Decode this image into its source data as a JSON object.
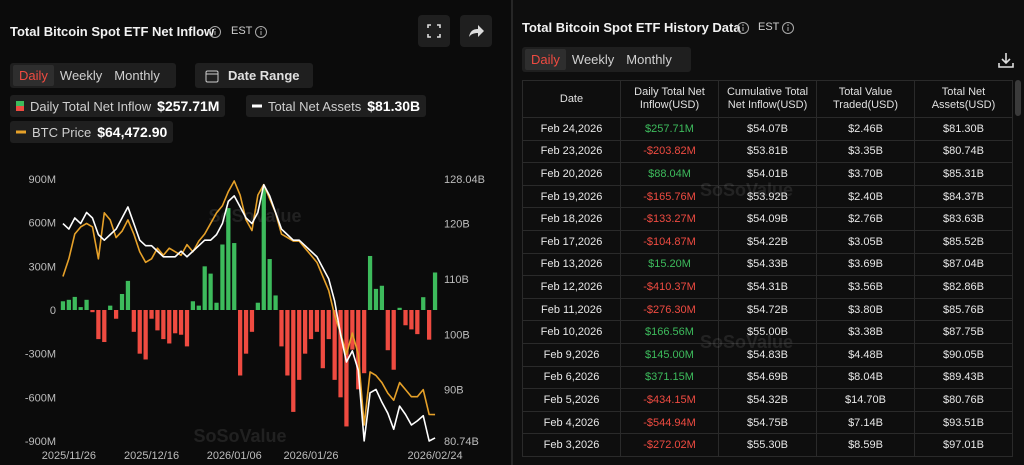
{
  "left_header": {
    "title": "Total Bitcoin Spot ETF Net Inflow",
    "zone": "EST",
    "tabs": [
      "Daily",
      "Weekly",
      "Monthly"
    ],
    "date_button": "Date Range"
  },
  "legend_values": [
    "$257.71M",
    "$81.30B",
    "$64,472.90"
  ],
  "watermark": "SoSoValue",
  "chart_data": {
    "type": "bar",
    "categories": [
      null,
      "2025/11/26",
      null,
      null,
      null,
      null,
      null,
      null,
      null,
      null,
      null,
      null,
      null,
      null,
      null,
      "2025/12/16",
      null,
      null,
      null,
      null,
      null,
      null,
      null,
      null,
      null,
      null,
      null,
      null,
      null,
      "2026/01/06",
      null,
      null,
      null,
      null,
      null,
      null,
      null,
      null,
      null,
      null,
      null,
      null,
      "2026/01/26",
      null,
      null,
      null,
      null,
      null,
      null,
      null,
      null,
      null,
      null,
      null,
      null,
      null,
      null,
      null,
      null,
      null,
      null,
      null,
      null,
      "2026/02/24"
    ],
    "series": [
      {
        "name": "Daily Total Net Inflow",
        "type": "bar",
        "color": "#3dbb5c",
        "negative_color": "#ef4b41",
        "values": [
          60,
          70,
          90,
          20,
          70,
          -15,
          -200,
          -220,
          30,
          -60,
          110,
          200,
          -150,
          -300,
          -340,
          -60,
          -140,
          -200,
          -230,
          -160,
          -170,
          -250,
          60,
          30,
          300,
          250,
          50,
          450,
          700,
          460,
          -450,
          -300,
          -150,
          50,
          840,
          350,
          100,
          -250,
          -450,
          -700,
          -480,
          -300,
          -200,
          -150,
          -400,
          -200,
          -480,
          -600,
          -800,
          -272.02,
          -544.94,
          -434.15,
          371.15,
          145.0,
          166.56,
          -276.3,
          -410.37,
          15.2,
          -104.87,
          -133.27,
          -165.76,
          88.04,
          -203.82,
          257.71
        ]
      },
      {
        "name": "Total Net Assets",
        "type": "line",
        "axis": "y2",
        "color": "#ffffff",
        "values": [
          120,
          119,
          121,
          120,
          122,
          121,
          118,
          117,
          118,
          119,
          121,
          123,
          120,
          117,
          116,
          116,
          115,
          114,
          114,
          114,
          115,
          114,
          115,
          116,
          117,
          117,
          118,
          120,
          124,
          125,
          123,
          121,
          120,
          122,
          127,
          125,
          122,
          119,
          118,
          117,
          117,
          116,
          115,
          114,
          112,
          110,
          106,
          100,
          95,
          97.01,
          93.51,
          80.76,
          89.43,
          90.05,
          87.75,
          85.76,
          82.86,
          87.04,
          85.52,
          83.63,
          84.37,
          85.31,
          80.74,
          81.3
        ]
      },
      {
        "name": "BTC Price",
        "type": "line",
        "color": "#e6a129",
        "values": [
          84000,
          86500,
          90000,
          91000,
          91500,
          91000,
          86500,
          93000,
          92000,
          89500,
          90400,
          92000,
          90000,
          87500,
          86000,
          86500,
          88000,
          87000,
          88000,
          87500,
          87000,
          88500,
          87500,
          89000,
          90000,
          91500,
          93000,
          94000,
          96000,
          97500,
          95500,
          92000,
          90500,
          95500,
          97000,
          95000,
          93000,
          90000,
          89500,
          89000,
          89000,
          88000,
          87000,
          86000,
          84000,
          82000,
          78500,
          76000,
          73000,
          76000,
          73000,
          63000,
          70500,
          70000,
          69000,
          67500,
          66500,
          69000,
          68000,
          67000,
          67000,
          68000,
          64500,
          64472.9
        ]
      }
    ],
    "ylim": [
      -900,
      900
    ],
    "yticks": [
      {
        "value": 900,
        "label": "900M"
      },
      {
        "value": 600,
        "label": "600M"
      },
      {
        "value": 300,
        "label": "300M"
      },
      0,
      {
        "value": -300,
        "label": "-300M"
      },
      {
        "value": -600,
        "label": "-600M"
      },
      {
        "value": -900,
        "label": "-900M"
      }
    ],
    "y2lim": [
      80.74,
      128.04
    ],
    "y2ticks": [
      {
        "value": 128.04,
        "label": "128.04B"
      },
      {
        "value": 120,
        "label": "120B"
      },
      {
        "value": 110,
        "label": "110B"
      },
      {
        "value": 100,
        "label": "100B"
      },
      {
        "value": 90,
        "label": "90B"
      },
      {
        "value": 80.74,
        "label": "80.74B"
      }
    ],
    "grid": false
  },
  "right_header": {
    "title": "Total Bitcoin Spot ETF History Data",
    "zone": "EST",
    "tabs": [
      "Daily",
      "Weekly",
      "Monthly"
    ]
  },
  "table": {
    "columns": [
      "Date",
      "Daily Total Net Inflow(USD)",
      "Cumulative Total Net Inflow(USD)",
      "Total Value Traded(USD)",
      "Total Net Assets(USD)"
    ],
    "rows": [
      [
        "Feb 24,2026",
        "$257.71M",
        "$54.07B",
        "$2.46B",
        "$81.30B"
      ],
      [
        "Feb 23,2026",
        "-$203.82M",
        "$53.81B",
        "$3.35B",
        "$80.74B"
      ],
      [
        "Feb 20,2026",
        "$88.04M",
        "$54.01B",
        "$3.70B",
        "$85.31B"
      ],
      [
        "Feb 19,2026",
        "-$165.76M",
        "$53.92B",
        "$2.40B",
        "$84.37B"
      ],
      [
        "Feb 18,2026",
        "-$133.27M",
        "$54.09B",
        "$2.76B",
        "$83.63B"
      ],
      [
        "Feb 17,2026",
        "-$104.87M",
        "$54.22B",
        "$3.05B",
        "$85.52B"
      ],
      [
        "Feb 13,2026",
        "$15.20M",
        "$54.33B",
        "$3.69B",
        "$87.04B"
      ],
      [
        "Feb 12,2026",
        "-$410.37M",
        "$54.31B",
        "$3.56B",
        "$82.86B"
      ],
      [
        "Feb 11,2026",
        "-$276.30M",
        "$54.72B",
        "$3.80B",
        "$85.76B"
      ],
      [
        "Feb 10,2026",
        "$166.56M",
        "$55.00B",
        "$3.38B",
        "$87.75B"
      ],
      [
        "Feb 9,2026",
        "$145.00M",
        "$54.83B",
        "$4.48B",
        "$90.05B"
      ],
      [
        "Feb 6,2026",
        "$371.15M",
        "$54.69B",
        "$8.04B",
        "$89.43B"
      ],
      [
        "Feb 5,2026",
        "-$434.15M",
        "$54.32B",
        "$14.70B",
        "$80.76B"
      ],
      [
        "Feb 4,2026",
        "-$544.94M",
        "$54.75B",
        "$7.14B",
        "$93.51B"
      ],
      [
        "Feb 3,2026",
        "-$272.02M",
        "$55.30B",
        "$8.59B",
        "$97.01B"
      ]
    ]
  }
}
